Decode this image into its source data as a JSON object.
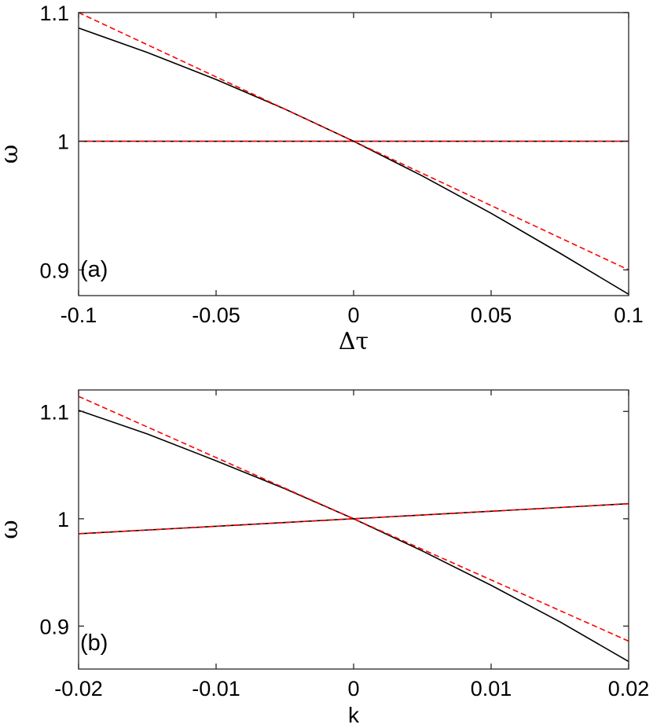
{
  "chart_data": [
    {
      "type": "line",
      "panel_label": "(a)",
      "xlabel": "Δτ",
      "ylabel": "ω",
      "xlim": [
        -0.1,
        0.1
      ],
      "ylim": [
        0.88,
        1.1
      ],
      "xticks": [
        -0.1,
        -0.05,
        0,
        0.05,
        0.1
      ],
      "xtick_labels": [
        "-0.1",
        "-0.05",
        "0",
        "0.05",
        "0.1"
      ],
      "yticks": [
        0.9,
        1,
        1.1
      ],
      "ytick_labels": [
        "0.9",
        "1",
        "1.1"
      ],
      "grid": false,
      "series": [
        {
          "color": "#000000",
          "dash": "solid",
          "x": [
            -0.1,
            -0.075,
            -0.05,
            -0.025,
            0,
            0.025,
            0.05,
            0.075,
            0.1
          ],
          "y": [
            1.088,
            1.069,
            1.048,
            1.025,
            1.0,
            0.973,
            0.944,
            0.913,
            0.881
          ]
        },
        {
          "color": "#ff0000",
          "dash": "dashed",
          "x": [
            -0.1,
            0.1
          ],
          "y": [
            1.1,
            0.9
          ]
        },
        {
          "color": "#000000",
          "dash": "solid",
          "x": [
            -0.1,
            0.1
          ],
          "y": [
            1.0,
            1.0
          ]
        },
        {
          "color": "#ff0000",
          "dash": "dashed",
          "x": [
            -0.1,
            0.1
          ],
          "y": [
            1.0,
            1.0
          ]
        }
      ]
    },
    {
      "type": "line",
      "panel_label": "(b)",
      "xlabel": "k",
      "ylabel": "ω",
      "xlim": [
        -0.02,
        0.02
      ],
      "ylim": [
        0.86,
        1.12
      ],
      "xticks": [
        -0.02,
        -0.01,
        0,
        0.01,
        0.02
      ],
      "xtick_labels": [
        "-0.02",
        "-0.01",
        "0",
        "0.01",
        "0.02"
      ],
      "yticks": [
        0.9,
        1,
        1.1
      ],
      "ytick_labels": [
        "0.9",
        "1",
        "1.1"
      ],
      "grid": false,
      "series": [
        {
          "color": "#000000",
          "dash": "solid",
          "x": [
            -0.02,
            -0.015,
            -0.01,
            -0.005,
            0,
            0.005,
            0.01,
            0.015,
            0.02
          ],
          "y": [
            1.101,
            1.079,
            1.054,
            1.028,
            1.0,
            0.97,
            0.938,
            0.904,
            0.867
          ]
        },
        {
          "color": "#ff0000",
          "dash": "dashed",
          "x": [
            -0.02,
            0.02
          ],
          "y": [
            1.114,
            0.886
          ]
        },
        {
          "color": "#000000",
          "dash": "solid",
          "x": [
            -0.02,
            0.02
          ],
          "y": [
            0.986,
            1.014
          ]
        },
        {
          "color": "#ff0000",
          "dash": "dashed",
          "x": [
            -0.02,
            0.02
          ],
          "y": [
            0.986,
            1.014
          ]
        }
      ]
    }
  ]
}
